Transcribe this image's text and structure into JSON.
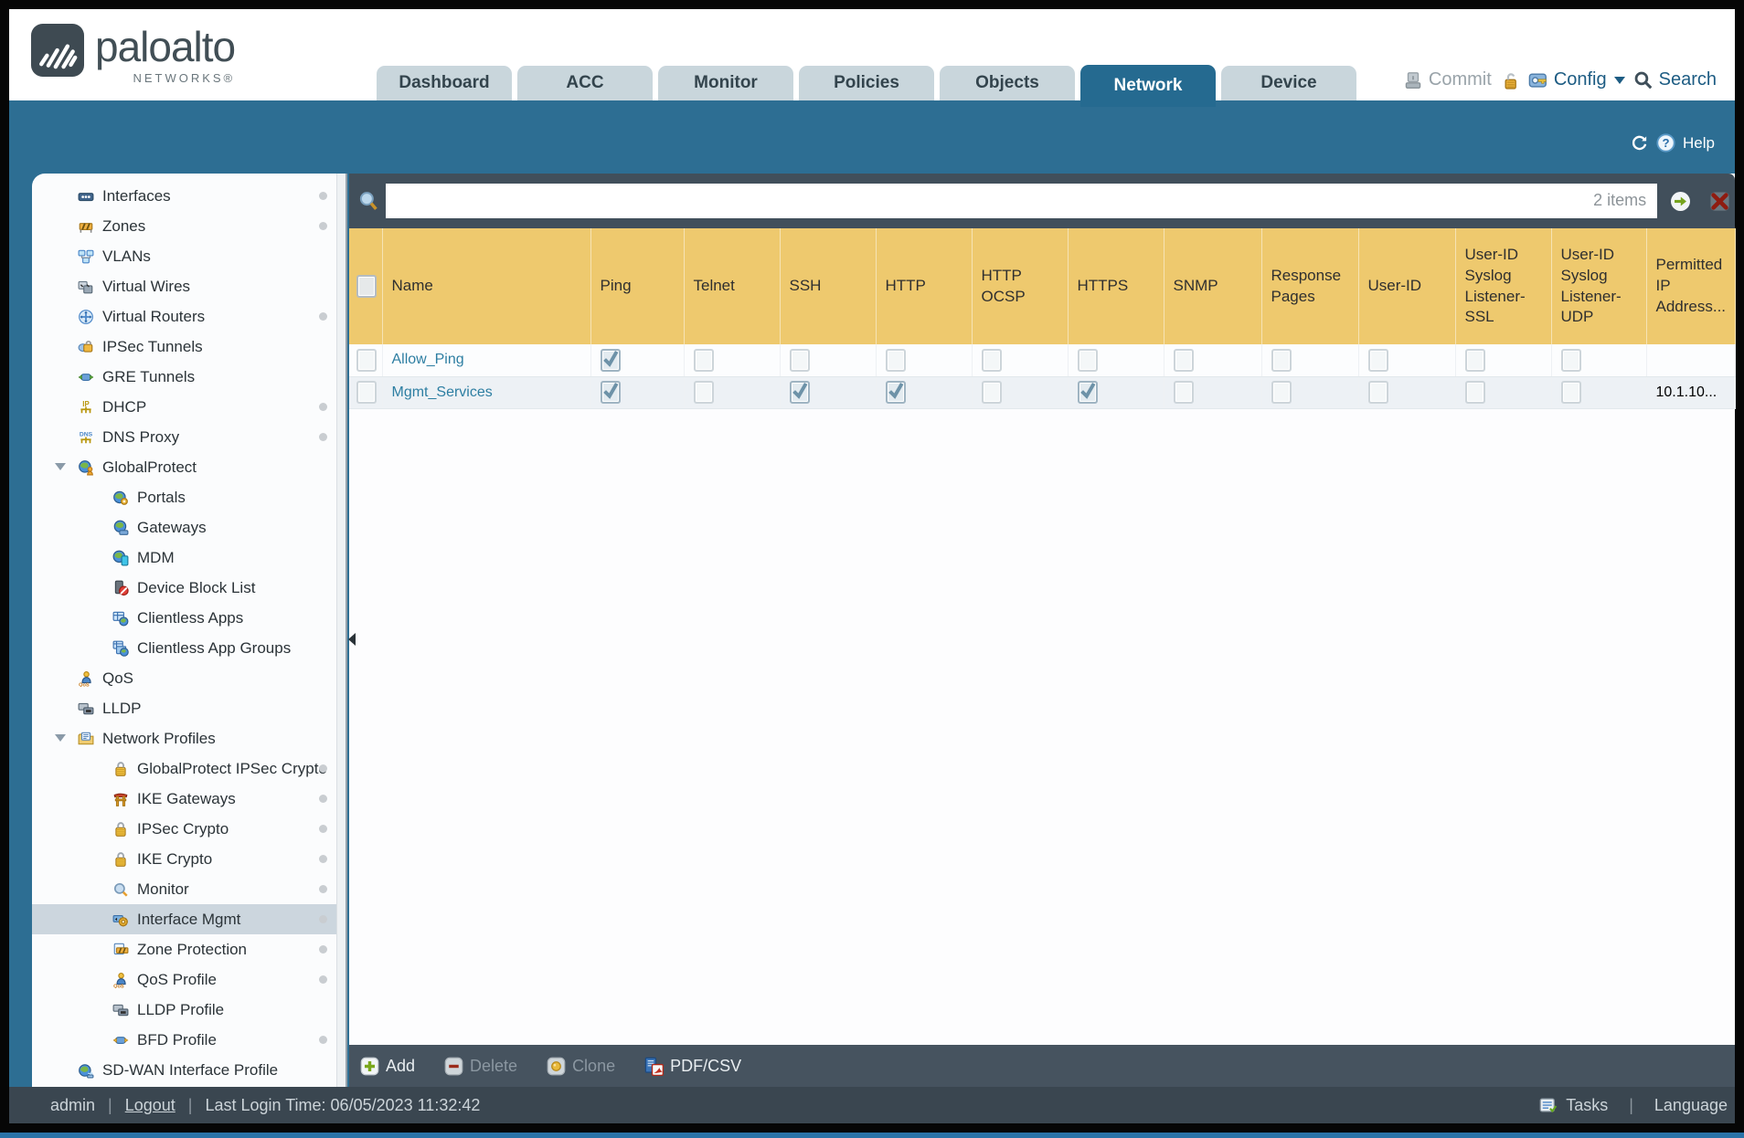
{
  "colors": {
    "accent_teal": "#2d6e93",
    "active_tab": "#256a90",
    "table_header_amber": "#eec96e",
    "slate_bar": "#414f5b",
    "link": "#2d7ea2"
  },
  "header": {
    "logo": {
      "brand": "paloalto",
      "sub": "NETWORKS®"
    },
    "tabs": [
      {
        "label": "Dashboard",
        "active": false
      },
      {
        "label": "ACC",
        "active": false
      },
      {
        "label": "Monitor",
        "active": false
      },
      {
        "label": "Policies",
        "active": false
      },
      {
        "label": "Objects",
        "active": false
      },
      {
        "label": "Network",
        "active": true
      },
      {
        "label": "Device",
        "active": false
      }
    ],
    "actions": {
      "commit": "Commit",
      "config": "Config",
      "search": "Search"
    }
  },
  "subheader": {
    "help": "Help"
  },
  "sidebar": {
    "items": [
      {
        "label": "Interfaces",
        "icon": "interfaces-icon",
        "level": 0,
        "dot": true
      },
      {
        "label": "Zones",
        "icon": "zones-icon",
        "level": 0,
        "dot": true
      },
      {
        "label": "VLANs",
        "icon": "vlans-icon",
        "level": 0
      },
      {
        "label": "Virtual Wires",
        "icon": "virtual-wires-icon",
        "level": 0
      },
      {
        "label": "Virtual Routers",
        "icon": "virtual-routers-icon",
        "level": 0,
        "dot": true
      },
      {
        "label": "IPSec Tunnels",
        "icon": "ipsec-tunnels-icon",
        "level": 0
      },
      {
        "label": "GRE Tunnels",
        "icon": "gre-tunnels-icon",
        "level": 0
      },
      {
        "label": "DHCP",
        "icon": "dhcp-icon",
        "level": 0,
        "dot": true
      },
      {
        "label": "DNS Proxy",
        "icon": "dns-proxy-icon",
        "level": 0,
        "dot": true
      },
      {
        "label": "GlobalProtect",
        "icon": "globalprotect-icon",
        "level": 0,
        "expander": true
      },
      {
        "label": "Portals",
        "icon": "portals-icon",
        "level": 1
      },
      {
        "label": "Gateways",
        "icon": "gateways-icon",
        "level": 1
      },
      {
        "label": "MDM",
        "icon": "mdm-icon",
        "level": 1
      },
      {
        "label": "Device Block List",
        "icon": "device-block-list-icon",
        "level": 1
      },
      {
        "label": "Clientless Apps",
        "icon": "clientless-apps-icon",
        "level": 1
      },
      {
        "label": "Clientless App Groups",
        "icon": "clientless-app-groups-icon",
        "level": 1
      },
      {
        "label": "QoS",
        "icon": "qos-icon",
        "level": 0
      },
      {
        "label": "LLDP",
        "icon": "lldp-icon",
        "level": 0
      },
      {
        "label": "Network Profiles",
        "icon": "network-profiles-icon",
        "level": 0,
        "expander": true
      },
      {
        "label": "GlobalProtect IPSec Crypto",
        "icon": "lock-icon",
        "level": 1,
        "dot": true
      },
      {
        "label": "IKE Gateways",
        "icon": "ike-gateways-icon",
        "level": 1,
        "dot": true
      },
      {
        "label": "IPSec Crypto",
        "icon": "lock-icon",
        "level": 1,
        "dot": true
      },
      {
        "label": "IKE Crypto",
        "icon": "lock-icon",
        "level": 1,
        "dot": true
      },
      {
        "label": "Monitor",
        "icon": "monitor-icon",
        "level": 1,
        "dot": true
      },
      {
        "label": "Interface Mgmt",
        "icon": "interface-mgmt-icon",
        "level": 1,
        "dot": true,
        "selected": true
      },
      {
        "label": "Zone Protection",
        "icon": "zone-protection-icon",
        "level": 1,
        "dot": true
      },
      {
        "label": "QoS Profile",
        "icon": "qos-profile-icon",
        "level": 1,
        "dot": true
      },
      {
        "label": "LLDP Profile",
        "icon": "lldp-profile-icon",
        "level": 1
      },
      {
        "label": "BFD Profile",
        "icon": "bfd-profile-icon",
        "level": 1,
        "dot": true
      },
      {
        "label": "SD-WAN Interface Profile",
        "icon": "sdwan-icon",
        "level": 0
      }
    ]
  },
  "content": {
    "search": {
      "value": "",
      "count_label": "2 items"
    },
    "table": {
      "columns": [
        "",
        "Name",
        "Ping",
        "Telnet",
        "SSH",
        "HTTP",
        "HTTP OCSP",
        "HTTPS",
        "SNMP",
        "Response Pages",
        "User-ID",
        "User-ID Syslog Listener-SSL",
        "User-ID Syslog Listener-UDP",
        "Permitted IP Address..."
      ],
      "service_keys": [
        "ping",
        "telnet",
        "ssh",
        "http",
        "http-ocsp",
        "https",
        "snmp",
        "response-pages",
        "user-id",
        "user-id-syslog-listener-ssl",
        "user-id-syslog-listener-udp"
      ],
      "rows": [
        {
          "name": "Allow_Ping",
          "services": [
            true,
            false,
            false,
            false,
            false,
            false,
            false,
            false,
            false,
            false,
            false
          ],
          "permitted_ip": ""
        },
        {
          "name": "Mgmt_Services",
          "services": [
            true,
            false,
            true,
            true,
            false,
            true,
            false,
            false,
            false,
            false,
            false
          ],
          "permitted_ip": "10.1.10..."
        }
      ]
    },
    "toolbar": [
      {
        "label": "Add",
        "icon": "add-icon",
        "enabled": true
      },
      {
        "label": "Delete",
        "icon": "delete-icon",
        "enabled": false
      },
      {
        "label": "Clone",
        "icon": "clone-icon",
        "enabled": false
      },
      {
        "label": "PDF/CSV",
        "icon": "pdfcsv-icon",
        "enabled": true
      }
    ]
  },
  "footer": {
    "user": "admin",
    "separator": "|",
    "logout": "Logout",
    "last_login": "Last Login Time: 06/05/2023 11:32:42",
    "tasks": "Tasks",
    "language": "Language"
  }
}
